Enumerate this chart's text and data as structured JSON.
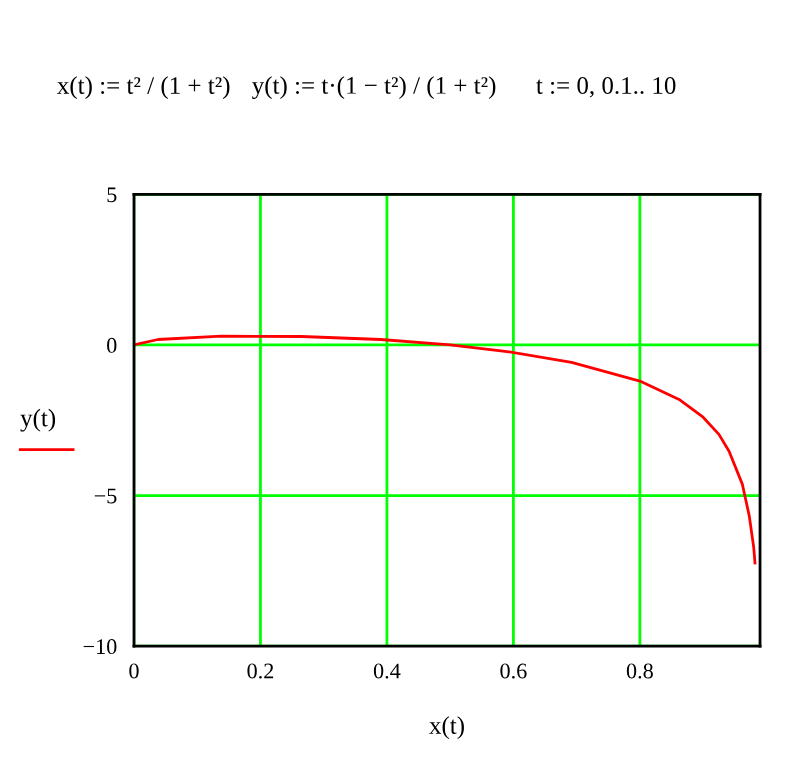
{
  "chart_data": {
    "type": "line",
    "xlabel": "x(t)",
    "ylabel": "y(t)",
    "annotations": [
      "x(t) := t² / (1 + t²)",
      "y(t) := t·(1 − t²) / (1 + t²)",
      "t := 0, 0.1.. 10"
    ],
    "x": [
      0,
      0.038,
      0.138,
      0.265,
      0.39,
      0.5,
      0.59,
      0.692,
      0.8,
      0.862,
      0.9,
      0.925,
      0.941,
      0.962,
      0.973,
      0.98,
      0.982
    ],
    "series": [
      {
        "color": "#ff0000",
        "values": [
          0,
          0.18,
          0.29,
          0.28,
          0.18,
          0,
          -0.22,
          -0.58,
          -1.2,
          -1.81,
          -2.4,
          -2.97,
          -3.53,
          -4.62,
          -5.68,
          -6.72,
          -7.24
        ]
      }
    ],
    "xlim": [
      0,
      0.99
    ],
    "ylim": [
      -10,
      5
    ],
    "xticks": [
      0,
      0.2,
      0.4,
      0.6,
      0.8
    ],
    "yticks": [
      -10,
      -5,
      0,
      5
    ],
    "grid": true,
    "marker": "none",
    "line_style": "solid"
  }
}
